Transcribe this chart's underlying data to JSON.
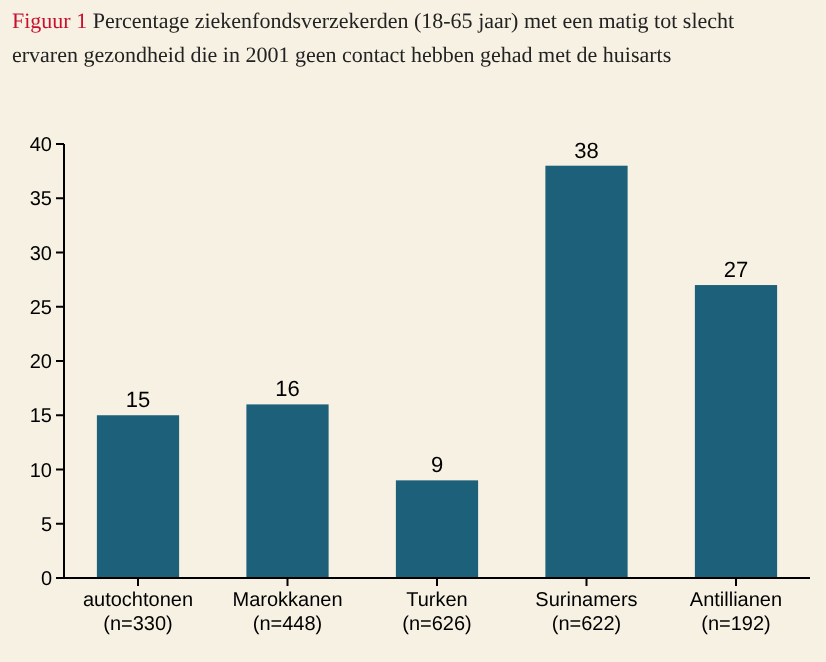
{
  "chart_data": {
    "type": "bar",
    "title": "Figuur 1",
    "subtitle": "Percentage ziekenfondsverzekerden (18-65 jaar) met een matig tot slecht ervaren gezondheid die in 2001 geen contact hebben gehad met de huisarts",
    "categories": [
      "autochtonen\n(n=330)",
      "Marokkanen\n(n=448)",
      "Turken\n(n=626)",
      "Surinamers\n(n=622)",
      "Antillianen\n(n=192)"
    ],
    "values": [
      15,
      16,
      9,
      38,
      27
    ],
    "color": "#1d6079",
    "ylim": [
      0,
      40
    ],
    "yticks": [
      0,
      5,
      10,
      15,
      20,
      25,
      30,
      35,
      40
    ],
    "data_labels": true,
    "grid": false
  }
}
